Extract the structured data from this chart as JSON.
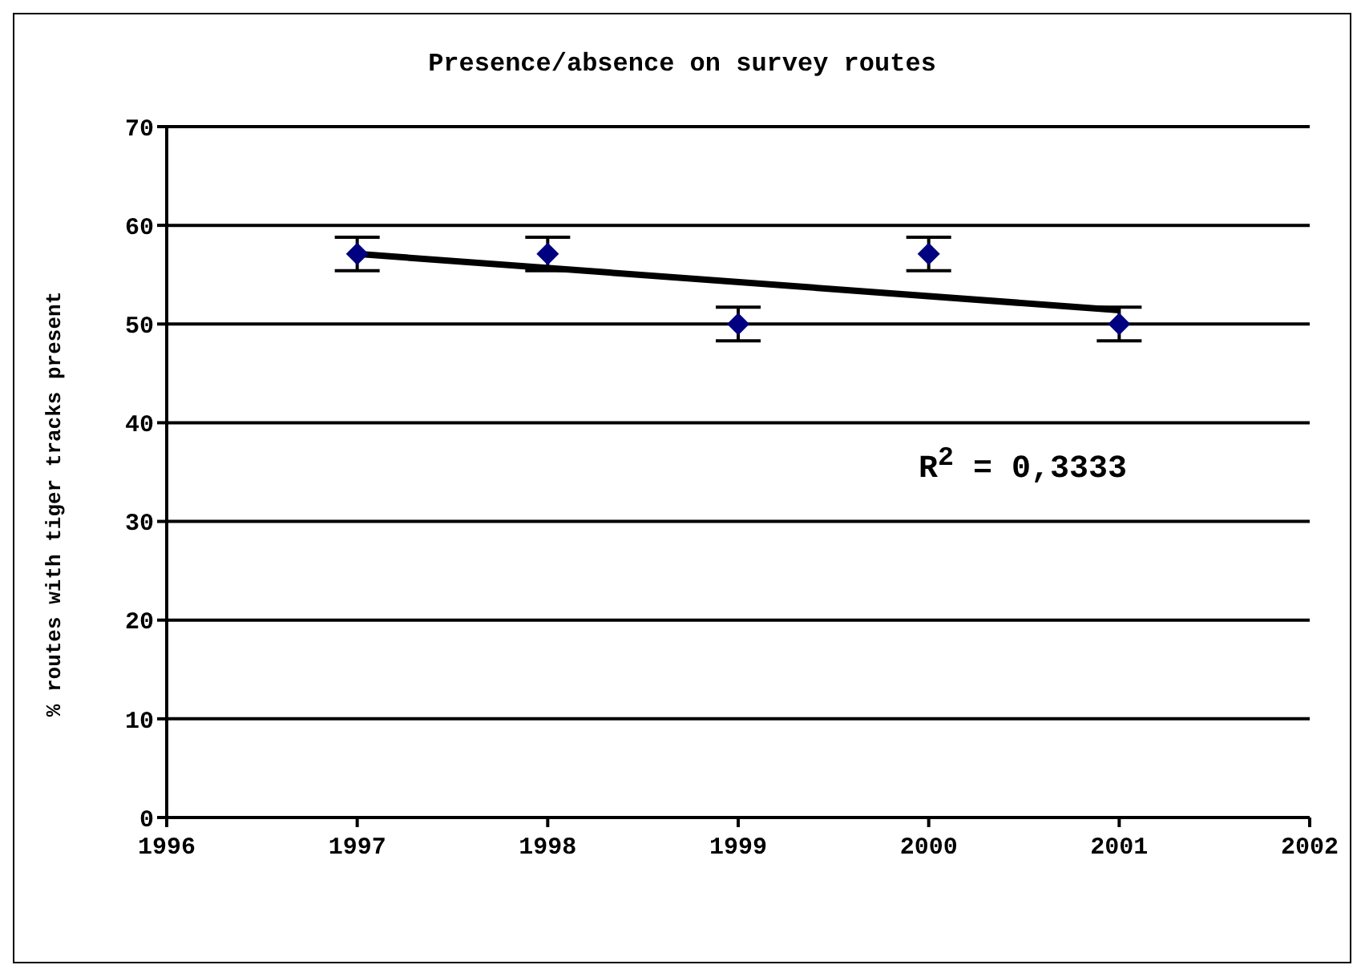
{
  "chart_data": {
    "type": "scatter",
    "title": "Presence/absence on survey routes",
    "ylabel": "% routes with tiger tracks present",
    "x": [
      1997,
      1998,
      1999,
      2000,
      2001
    ],
    "series": [
      {
        "color": "#000080",
        "values": [
          57.1,
          57.1,
          50,
          57.1,
          50
        ],
        "errors": [
          1.7,
          1.7,
          1.7,
          1.7,
          1.7
        ],
        "marker": "diamond"
      },
      {
        "type": "line",
        "color": "#000000",
        "x": [
          1997,
          2001
        ],
        "values": [
          57.1,
          51.4
        ],
        "marker": "none",
        "line_style": "solid"
      }
    ],
    "xlim": [
      1996,
      2002
    ],
    "xticks": [
      1996,
      1997,
      1998,
      1999,
      2000,
      2001,
      2002
    ],
    "ylim": [
      0,
      70
    ],
    "yticks": [
      0,
      10,
      20,
      30,
      40,
      50,
      60,
      70
    ],
    "grid": "y",
    "legend": false,
    "annotations": [
      "R$^{2}$ = 0,3333"
    ]
  }
}
